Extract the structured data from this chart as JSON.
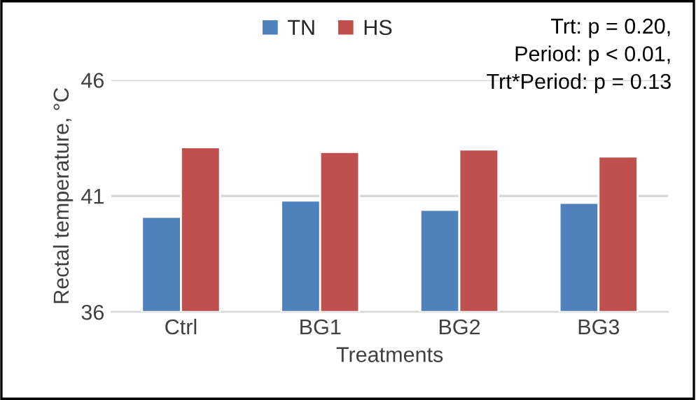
{
  "chart_data": {
    "type": "bar",
    "xlabel": "Treatments",
    "ylabel": "Rectal temperature, °C",
    "categories": [
      "Ctrl",
      "BG1",
      "BG2",
      "BG3"
    ],
    "series": [
      {
        "name": "TN",
        "color": "#4f81bd",
        "values": [
          40.1,
          40.8,
          40.4,
          40.7
        ]
      },
      {
        "name": "HS",
        "color": "#c0504d",
        "values": [
          43.1,
          42.9,
          43.0,
          42.7
        ]
      }
    ],
    "ylim": [
      36,
      46
    ],
    "yticks": [
      36,
      41,
      46
    ],
    "grid": "y",
    "legend": "top",
    "annotations": [
      "Trt: p = 0.20,\nPeriod: p < 0.01,\nTrt*Period: p = 0.13"
    ]
  }
}
